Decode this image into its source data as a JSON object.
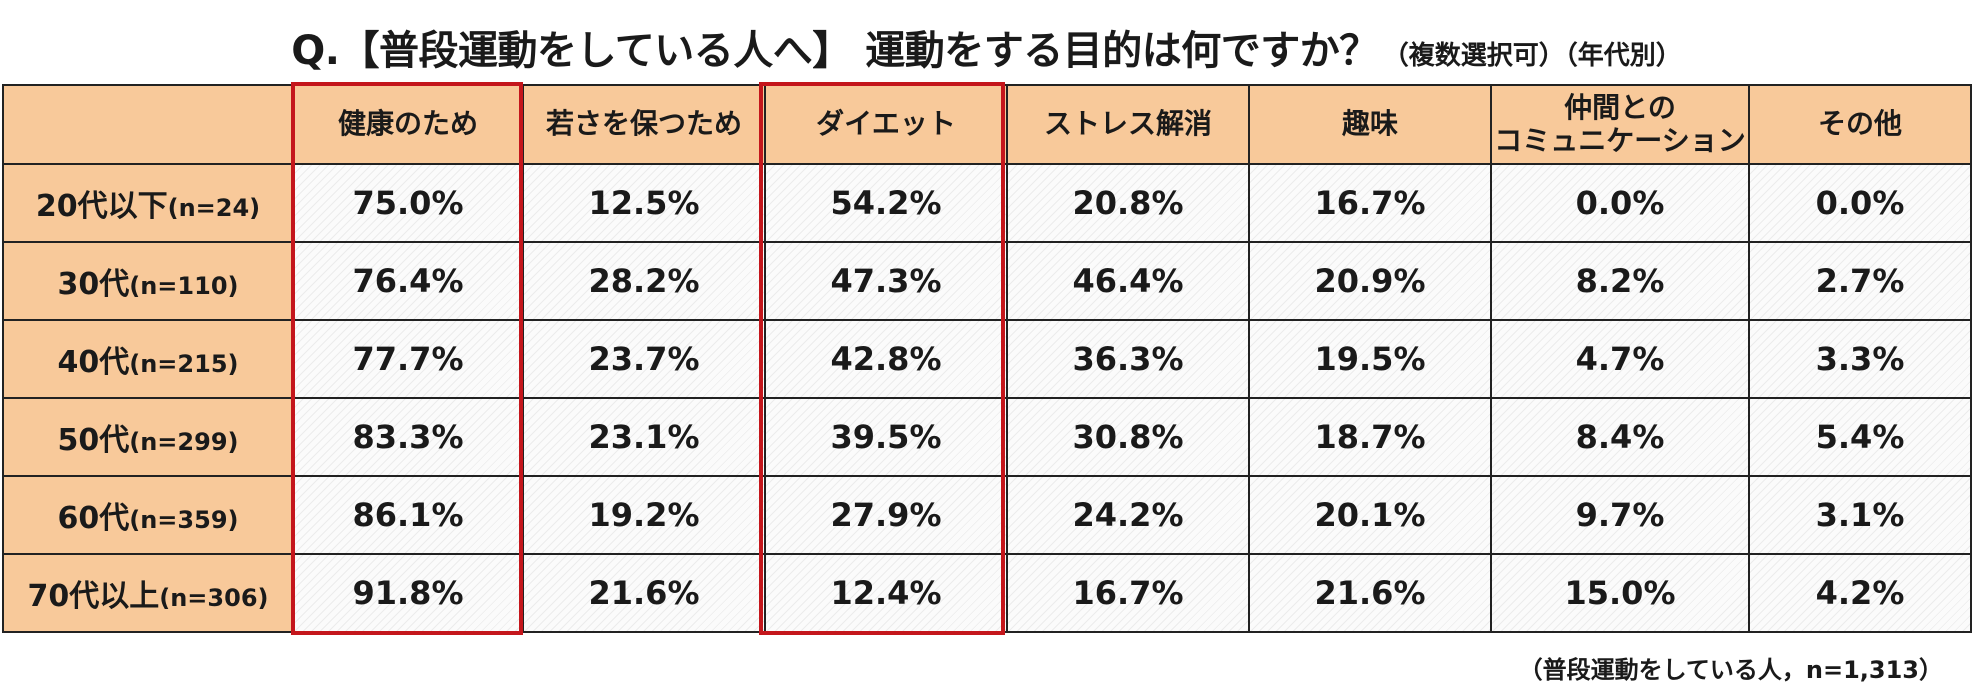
{
  "title": {
    "prefix": "Q.",
    "main": "【普段運動をしている人へ】 運動をする目的は何ですか？",
    "note": "（複数選択可）（年代別）"
  },
  "footnote": "（普段運動をしている人，n=1,313）",
  "colors": {
    "header_bg": "#f8c99a",
    "highlight_border": "#c4161c"
  },
  "chart_data": {
    "type": "table",
    "title": "Q.【普段運動をしている人へ】 運動をする目的は何ですか？（複数選択可）（年代別）",
    "columns": [
      "健康のため",
      "若さを保つため",
      "ダイエット",
      "ストレス解消",
      "趣味",
      "仲間との\nコミュニケーション",
      "その他"
    ],
    "highlighted_columns": [
      "健康のため",
      "ダイエット"
    ],
    "rows": [
      {
        "label": "20代以下",
        "n": "(n=24)",
        "values": [
          "75.0%",
          "12.5%",
          "54.2%",
          "20.8%",
          "16.7%",
          "0.0%",
          "0.0%"
        ]
      },
      {
        "label": "30代",
        "n": "(n=110)",
        "values": [
          "76.4%",
          "28.2%",
          "47.3%",
          "46.4%",
          "20.9%",
          "8.2%",
          "2.7%"
        ]
      },
      {
        "label": "40代",
        "n": "(n=215)",
        "values": [
          "77.7%",
          "23.7%",
          "42.8%",
          "36.3%",
          "19.5%",
          "4.7%",
          "3.3%"
        ]
      },
      {
        "label": "50代",
        "n": "(n=299)",
        "values": [
          "83.3%",
          "23.1%",
          "39.5%",
          "30.8%",
          "18.7%",
          "8.4%",
          "5.4%"
        ]
      },
      {
        "label": "60代",
        "n": "(n=359)",
        "values": [
          "86.1%",
          "19.2%",
          "27.9%",
          "24.2%",
          "20.1%",
          "9.7%",
          "3.1%"
        ]
      },
      {
        "label": "70代以上",
        "n": "(n=306)",
        "values": [
          "91.8%",
          "21.6%",
          "12.4%",
          "16.7%",
          "21.6%",
          "15.0%",
          "4.2%"
        ]
      }
    ]
  }
}
